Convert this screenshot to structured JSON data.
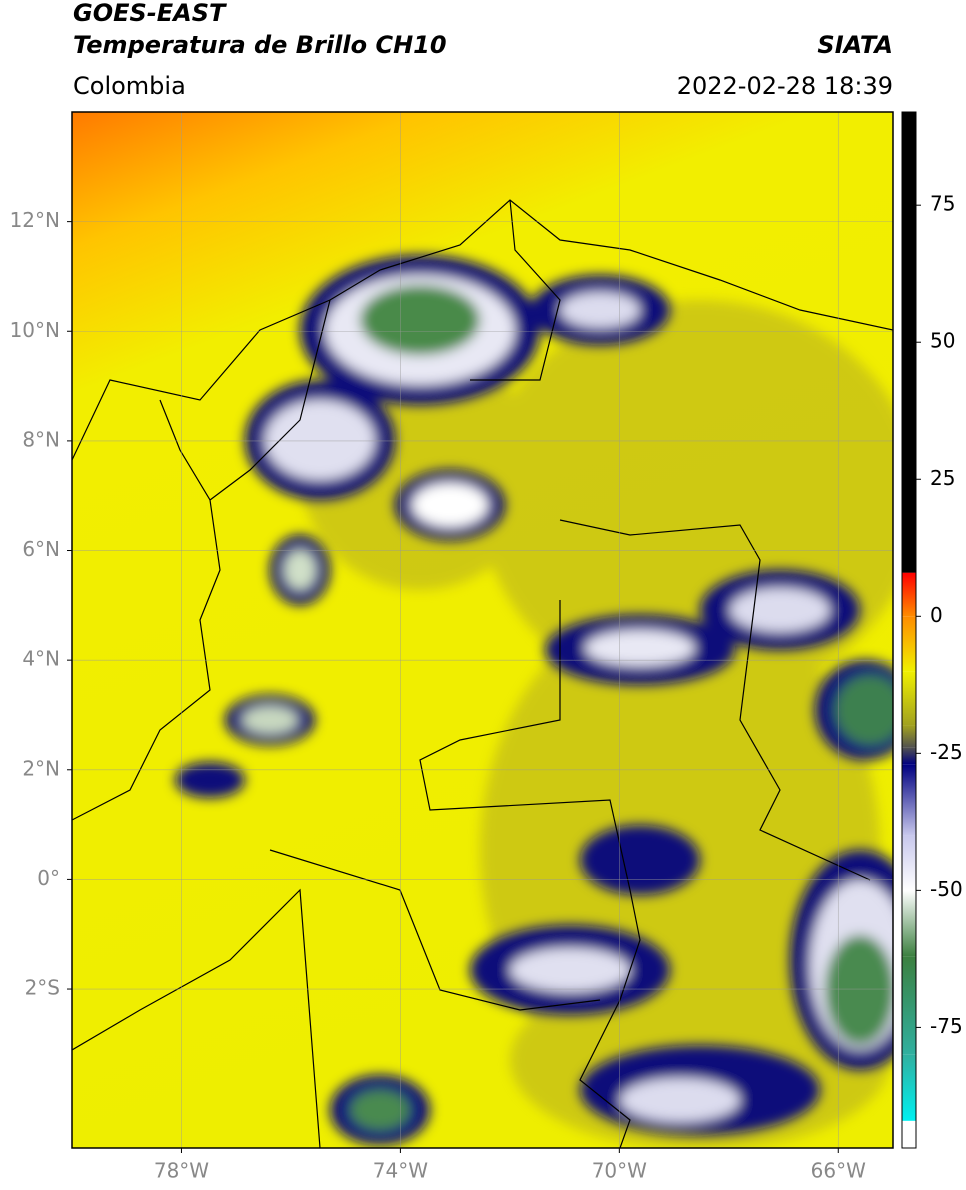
{
  "header": {
    "title": "GOES-EAST",
    "subtitle": "Temperatura de Brillo CH10",
    "source": "SIATA",
    "region": "Colombia",
    "timestamp": "2022-02-28 18:39"
  },
  "map": {
    "xlim": [
      -80,
      -65
    ],
    "ylim": [
      -4.9,
      14
    ],
    "grid": true,
    "xticks": [
      {
        "value": -78,
        "label": "78°W"
      },
      {
        "value": -74,
        "label": "74°W"
      },
      {
        "value": -70,
        "label": "70°W"
      },
      {
        "value": -66,
        "label": "66°W"
      }
    ],
    "yticks": [
      {
        "value": 12,
        "label": "12°N"
      },
      {
        "value": 10,
        "label": "10°N"
      },
      {
        "value": 8,
        "label": "8°N"
      },
      {
        "value": 6,
        "label": "6°N"
      },
      {
        "value": 4,
        "label": "4°N"
      },
      {
        "value": 2,
        "label": "2°N"
      },
      {
        "value": 0,
        "label": "0°"
      },
      {
        "value": -2,
        "label": "2°S"
      }
    ]
  },
  "colorbar": {
    "lim": [
      -97,
      92
    ],
    "ticks": [
      75,
      50,
      25,
      0,
      -25,
      -50,
      -75
    ],
    "stops": [
      {
        "value": 92,
        "color": "#000000"
      },
      {
        "value": 8,
        "color": "#000000"
      },
      {
        "value": 7.9,
        "color": "#ff0000"
      },
      {
        "value": 0,
        "color": "#ff8c00"
      },
      {
        "value": -10,
        "color": "#f0f000"
      },
      {
        "value": -20,
        "color": "#a0a020"
      },
      {
        "value": -24,
        "color": "#505050"
      },
      {
        "value": -27,
        "color": "#000080"
      },
      {
        "value": -40,
        "color": "#c8c8ec"
      },
      {
        "value": -50,
        "color": "#ffffff"
      },
      {
        "value": -62,
        "color": "#3c8040"
      },
      {
        "value": -80,
        "color": "#30b0a0"
      },
      {
        "value": -92,
        "color": "#00f0f0"
      },
      {
        "value": -92.1,
        "color": "#ffffff"
      },
      {
        "value": -97,
        "color": "#ffffff"
      }
    ]
  }
}
